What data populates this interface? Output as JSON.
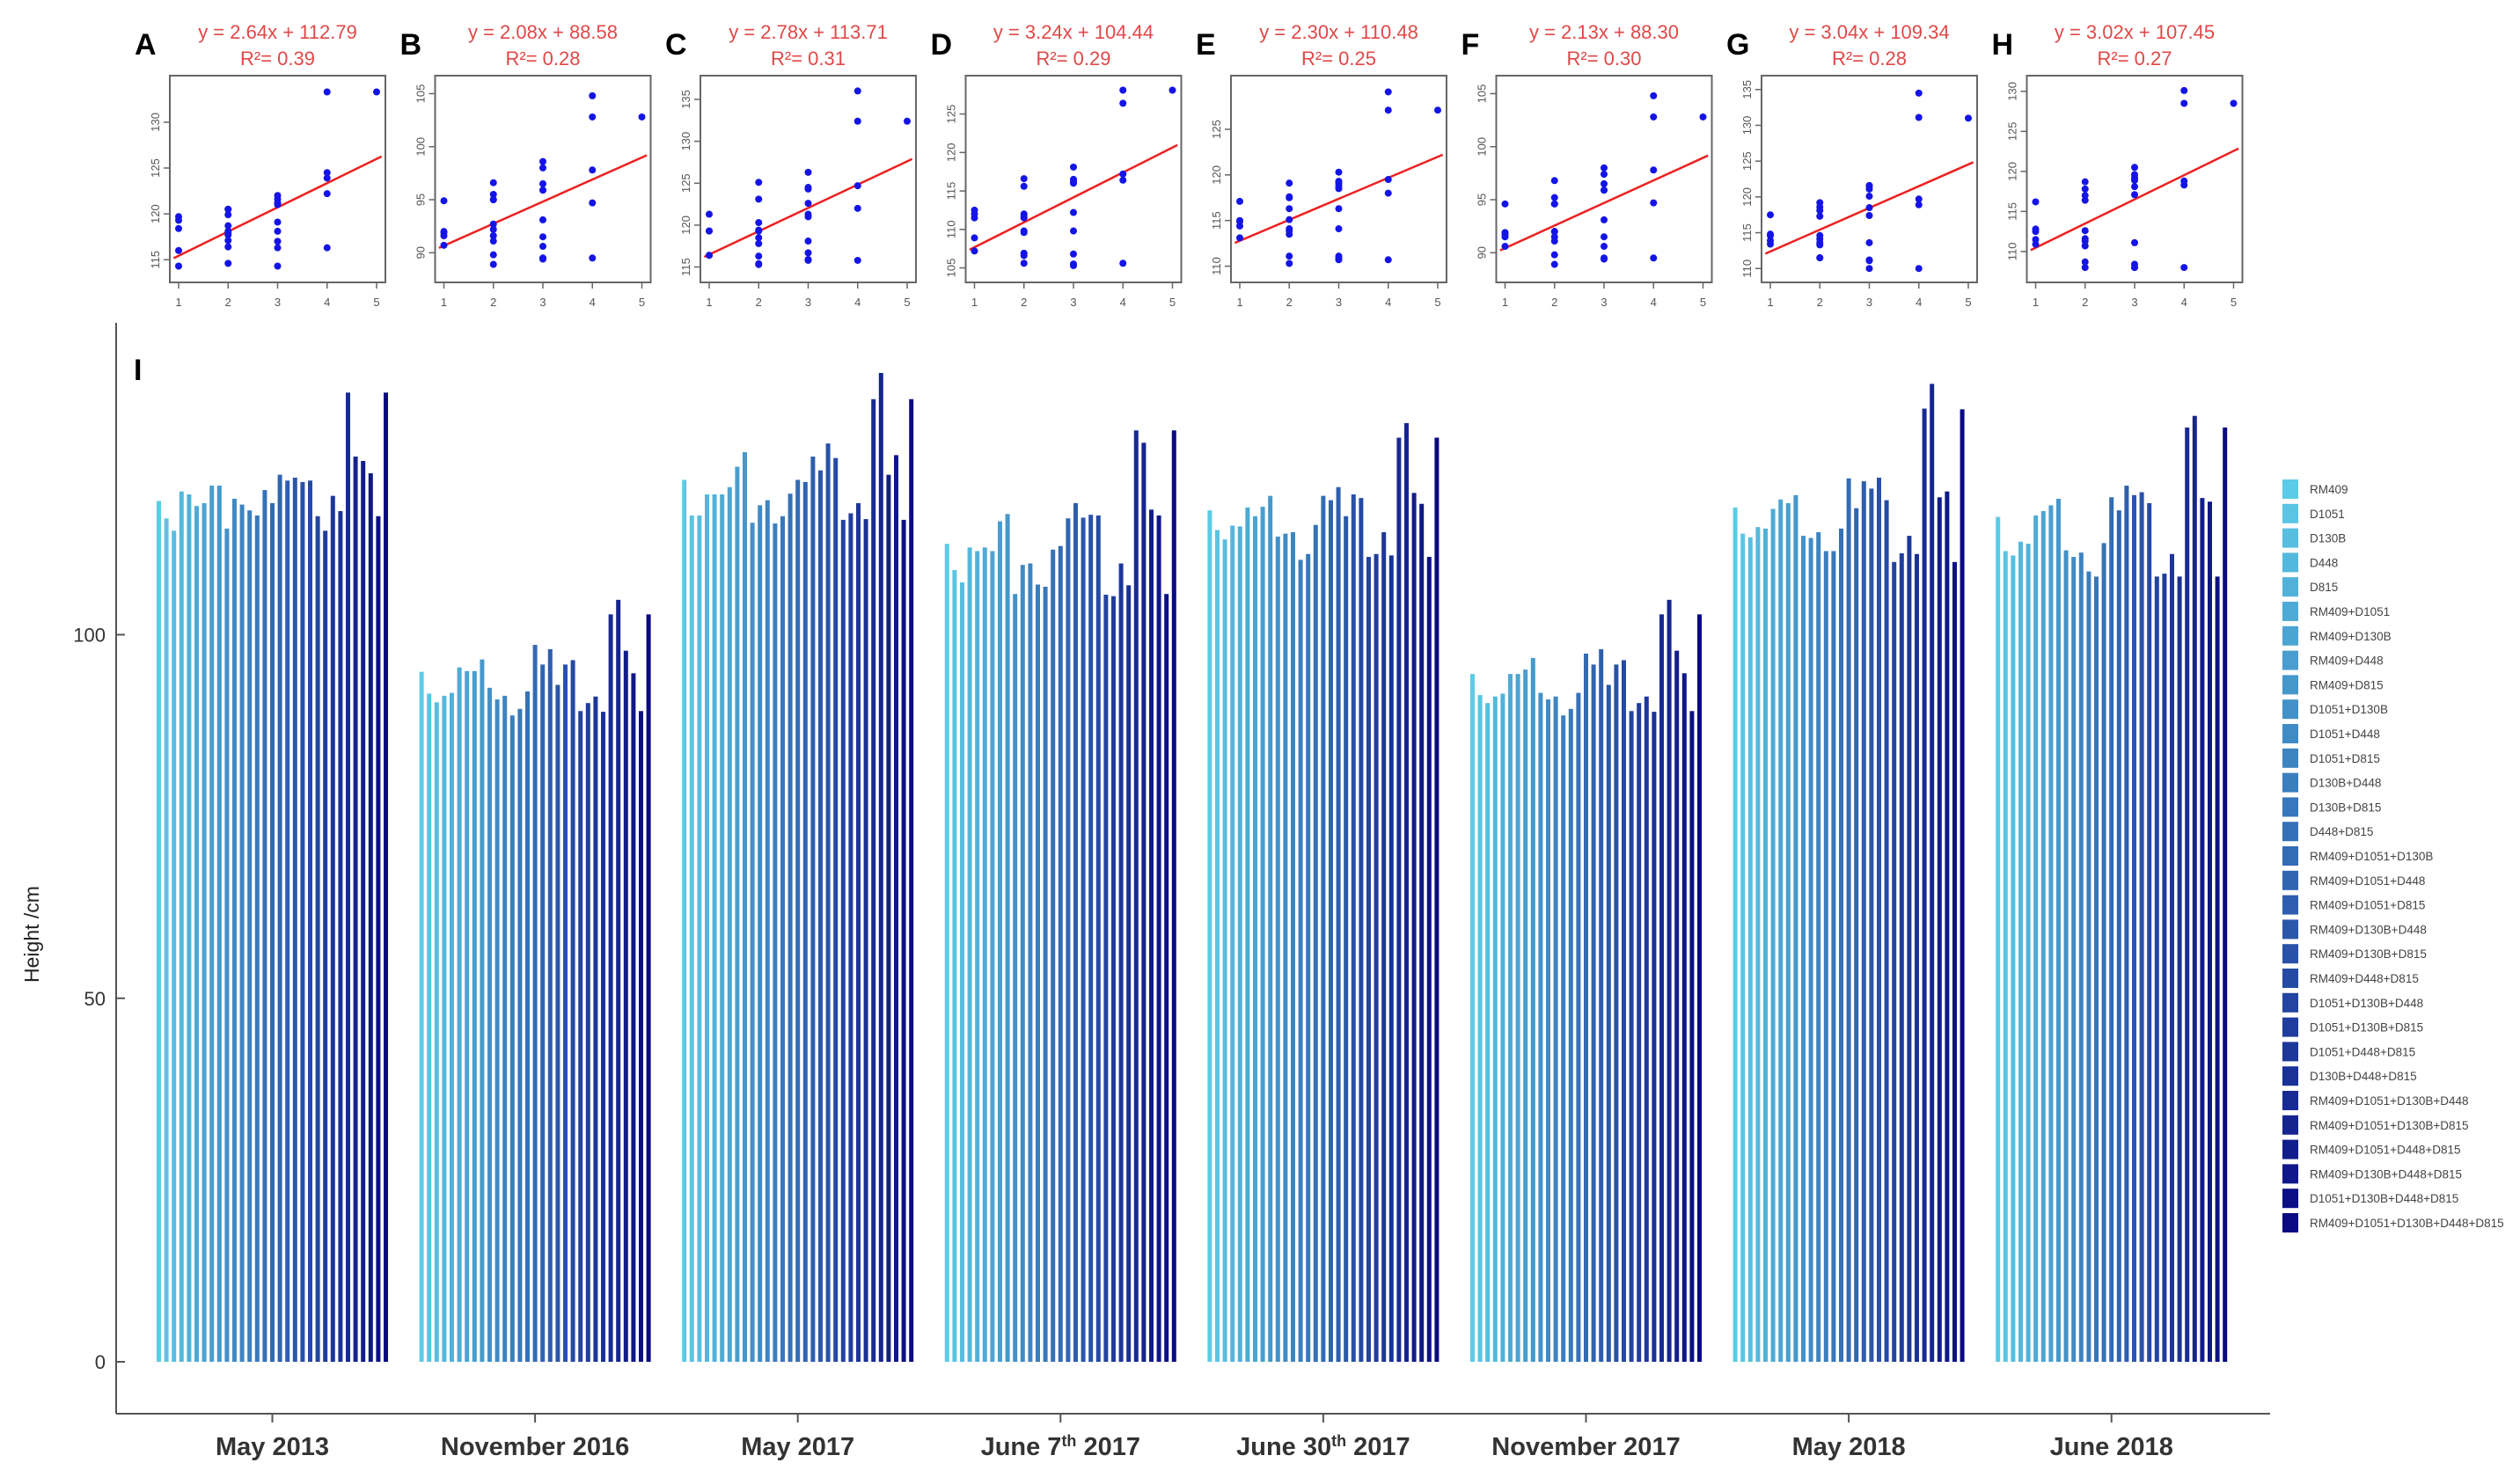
{
  "chart_data": {
    "type": "bar",
    "panel_label": "I",
    "ylabel": "Height /cm",
    "ylim": [
      0,
      140
    ],
    "yticks": [
      0,
      50,
      100
    ],
    "grid": false,
    "legend_position": "right",
    "groups": [
      "May 2013",
      "November 2016",
      "May 2017",
      "June 7th 2017",
      "June 30th 2017",
      "November 2017",
      "May 2018",
      "June 2018"
    ],
    "group_label_parts": [
      {
        "pre": "May 2013"
      },
      {
        "pre": "November 2016"
      },
      {
        "pre": "May 2017"
      },
      {
        "pre": "June 7",
        "sup": "th",
        "post": " 2017"
      },
      {
        "pre": "June 30",
        "sup": "th",
        "post": " 2017"
      },
      {
        "pre": "November 2017"
      },
      {
        "pre": "May 2018"
      },
      {
        "pre": "June 2018"
      }
    ],
    "series_names": [
      "RM409",
      "D1051",
      "D130B",
      "D448",
      "D815",
      "RM409+D1051",
      "RM409+D130B",
      "RM409+D448",
      "RM409+D815",
      "D1051+D130B",
      "D1051+D448",
      "D1051+D815",
      "D130B+D448",
      "D130B+D815",
      "D448+D815",
      "RM409+D1051+D130B",
      "RM409+D1051+D448",
      "RM409+D1051+D815",
      "RM409+D130B+D448",
      "RM409+D130B+D815",
      "RM409+D448+D815",
      "D1051+D130B+D448",
      "D1051+D130B+D815",
      "D1051+D448+D815",
      "D130B+D448+D815",
      "RM409+D1051+D130B+D448",
      "RM409+D1051+D130B+D815",
      "RM409+D1051+D448+D815",
      "RM409+D130B+D448+D815",
      "D1051+D130B+D448+D815",
      "RM409+D1051+D130B+D448+D815"
    ],
    "gene_count": [
      1,
      1,
      1,
      1,
      1,
      2,
      2,
      2,
      2,
      2,
      2,
      2,
      2,
      2,
      2,
      3,
      3,
      3,
      3,
      3,
      3,
      3,
      3,
      3,
      3,
      4,
      4,
      4,
      4,
      4,
      5
    ],
    "color_light": "#5ccbe6",
    "color_dark": "#0a0a82",
    "values": [
      [
        118.4,
        116.0,
        114.3,
        119.7,
        119.3,
        117.7,
        118.1,
        120.5,
        120.5,
        114.6,
        118.7,
        117.9,
        117.1,
        116.4,
        119.9,
        118.1,
        122.0,
        121.2,
        121.6,
        121.0,
        121.2,
        116.3,
        114.3,
        119.1,
        117.0,
        133.3,
        124.5,
        123.9,
        122.2,
        116.3,
        133.3
      ],
      [
        94.9,
        91.9,
        90.7,
        91.6,
        92.0,
        95.5,
        95.0,
        95.0,
        96.6,
        92.7,
        91.1,
        91.6,
        88.9,
        89.8,
        92.2,
        98.6,
        95.9,
        98.0,
        93.1,
        95.9,
        96.5,
        89.5,
        90.6,
        91.5,
        89.4,
        102.8,
        104.8,
        97.8,
        94.7,
        89.5,
        102.8
      ],
      [
        121.3,
        116.4,
        116.4,
        119.3,
        119.3,
        119.3,
        120.3,
        123.1,
        125.1,
        115.4,
        117.8,
        118.5,
        115.3,
        116.3,
        119.4,
        121.3,
        121.0,
        124.5,
        122.6,
        126.3,
        124.3,
        115.8,
        116.7,
        118.1,
        115.9,
        132.4,
        136.0,
        122.0,
        124.7,
        115.8,
        132.4
      ],
      [
        112.5,
        108.9,
        107.2,
        112.0,
        111.5,
        112.0,
        111.5,
        115.6,
        116.6,
        105.6,
        109.6,
        109.8,
        106.9,
        106.6,
        111.7,
        112.2,
        116.0,
        118.1,
        116.1,
        116.5,
        116.4,
        105.5,
        105.3,
        109.8,
        106.8,
        128.1,
        126.4,
        117.2,
        116.4,
        105.6,
        128.1
      ],
      [
        117.1,
        114.4,
        113.1,
        115.0,
        114.9,
        117.5,
        116.3,
        117.6,
        119.1,
        113.5,
        113.9,
        114.1,
        110.3,
        111.1,
        115.1,
        119.1,
        118.5,
        120.3,
        116.3,
        119.3,
        118.8,
        110.7,
        111.1,
        114.1,
        110.9,
        127.1,
        129.1,
        119.5,
        118.0,
        110.7,
        127.1
      ],
      [
        94.6,
        91.7,
        90.6,
        91.5,
        91.9,
        94.6,
        94.6,
        95.2,
        96.8,
        92.0,
        91.1,
        91.5,
        88.9,
        89.8,
        92.0,
        97.4,
        95.9,
        98.0,
        93.1,
        95.9,
        96.5,
        89.5,
        90.6,
        91.5,
        89.4,
        102.8,
        104.8,
        97.8,
        94.7,
        89.5,
        102.8
      ],
      [
        117.5,
        113.9,
        113.4,
        114.8,
        114.6,
        117.3,
        118.6,
        118.1,
        119.2,
        113.6,
        113.3,
        114.1,
        111.5,
        111.5,
        114.6,
        121.5,
        117.4,
        121.1,
        120.1,
        121.6,
        118.5,
        110.0,
        111.2,
        113.6,
        111.1,
        131.1,
        134.5,
        118.9,
        119.7,
        110.0,
        131.0
      ],
      [
        116.2,
        111.5,
        110.9,
        112.8,
        112.5,
        116.4,
        117.0,
        117.8,
        118.7,
        111.6,
        110.7,
        111.3,
        108.7,
        108.0,
        112.6,
        118.9,
        117.1,
        120.5,
        119.2,
        119.6,
        118.1,
        108.0,
        108.4,
        111.1,
        108.0,
        128.5,
        130.1,
        118.8,
        118.3,
        108.0,
        128.5
      ]
    ],
    "scatter_panels": [
      {
        "letter": "A",
        "equation": "y = 2.64x + 112.79",
        "r2": "R²= 0.39",
        "slope": 2.64,
        "intercept": 112.79,
        "yticks": [
          115,
          120,
          125,
          130
        ],
        "xticks": [
          1,
          2,
          3,
          4,
          5
        ],
        "group": 0
      },
      {
        "letter": "B",
        "equation": "y = 2.08x + 88.58",
        "r2": "R²= 0.28",
        "slope": 2.08,
        "intercept": 88.58,
        "yticks": [
          90,
          95,
          100,
          105
        ],
        "xticks": [
          1,
          2,
          3,
          4,
          5
        ],
        "group": 1
      },
      {
        "letter": "C",
        "equation": "y = 2.78x + 113.71",
        "r2": "R²= 0.31",
        "slope": 2.78,
        "intercept": 113.71,
        "yticks": [
          115,
          120,
          125,
          130,
          135
        ],
        "xticks": [
          1,
          2,
          3,
          4,
          5
        ],
        "group": 2
      },
      {
        "letter": "D",
        "equation": "y = 3.24x + 104.44",
        "r2": "R²= 0.29",
        "slope": 3.24,
        "intercept": 104.44,
        "yticks": [
          105,
          110,
          115,
          120,
          125
        ],
        "xticks": [
          1,
          2,
          3,
          4,
          5
        ],
        "group": 3
      },
      {
        "letter": "E",
        "equation": "y = 2.30x + 110.48",
        "r2": "R²= 0.25",
        "slope": 2.3,
        "intercept": 110.48,
        "yticks": [
          110,
          115,
          120,
          125
        ],
        "xticks": [
          1,
          2,
          3,
          4,
          5
        ],
        "group": 4
      },
      {
        "letter": "F",
        "equation": "y = 2.13x + 88.30",
        "r2": "R²= 0.30",
        "slope": 2.13,
        "intercept": 88.3,
        "yticks": [
          90,
          95,
          100,
          105
        ],
        "xticks": [
          1,
          2,
          3,
          4,
          5
        ],
        "group": 5
      },
      {
        "letter": "G",
        "equation": "y = 3.04x + 109.34",
        "r2": "R²= 0.28",
        "slope": 3.04,
        "intercept": 109.34,
        "yticks": [
          110,
          115,
          120,
          125,
          130,
          135
        ],
        "xticks": [
          1,
          2,
          3,
          4,
          5
        ],
        "group": 6
      },
      {
        "letter": "H",
        "equation": "y = 3.02x + 107.45",
        "r2": "R²= 0.27",
        "slope": 3.02,
        "intercept": 107.45,
        "yticks": [
          110,
          115,
          120,
          125,
          130
        ],
        "xticks": [
          1,
          2,
          3,
          4,
          5
        ],
        "group": 7
      }
    ],
    "point_color": "#1414e6",
    "line_color": "#ee2020",
    "equation_color": "#e04848"
  }
}
